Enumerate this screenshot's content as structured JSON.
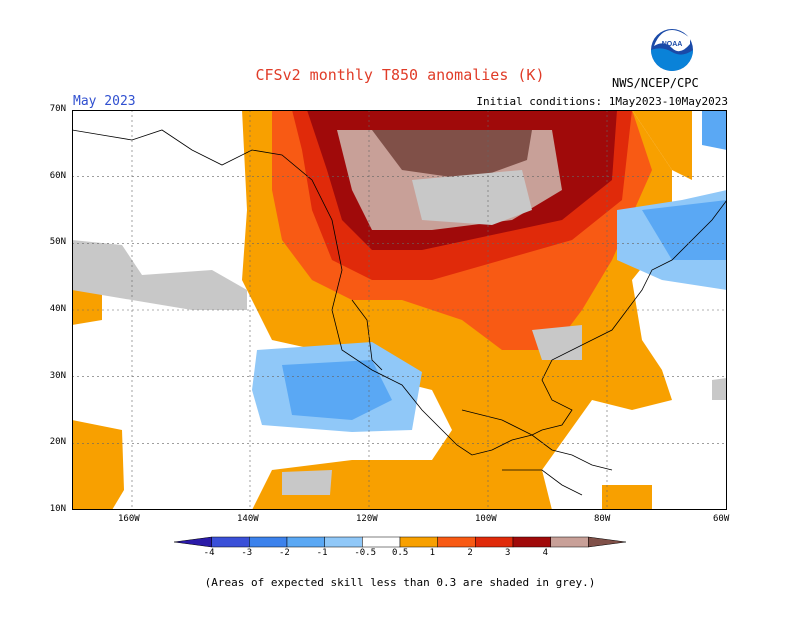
{
  "header": {
    "title": "CFSv2 monthly T850 anomalies (K)",
    "month": "May 2023",
    "initial_conditions": "Initial conditions: 1May2023-10May2023",
    "agency": "NWS/NCEP/CPC",
    "logo_text": "NOAA"
  },
  "axes": {
    "lat_labels": [
      "70N",
      "60N",
      "50N",
      "40N",
      "30N",
      "20N",
      "10N"
    ],
    "lon_labels": [
      "160W",
      "140W",
      "120W",
      "100W",
      "80W",
      "60W"
    ]
  },
  "colorbar": {
    "labels": [
      "-4",
      "-3",
      "-2",
      "-1",
      "-0.5",
      "0.5",
      "1",
      "2",
      "3",
      "4"
    ],
    "colors": [
      "#2a1aa8",
      "#3a50d8",
      "#3c82ec",
      "#5aa8f4",
      "#90c8f8",
      "#ffffff",
      "#f8a000",
      "#f85a14",
      "#e02a0a",
      "#a00a0a",
      "#c8a098",
      "#805048"
    ]
  },
  "footnote": "(Areas of expected skill less than 0.3 are shaded in grey.)",
  "colors": {
    "title": "#e03c28",
    "month": "#3050d0",
    "low_skill_grey": "#c8c8c8"
  }
}
